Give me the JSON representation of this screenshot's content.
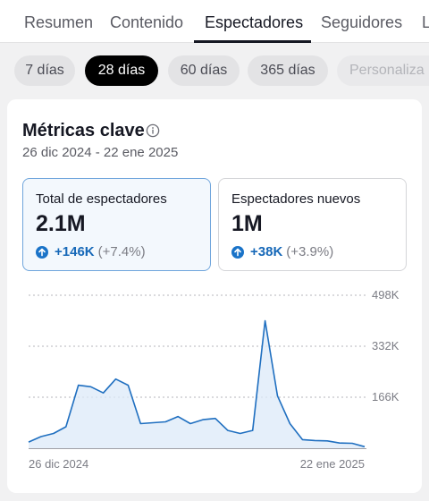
{
  "tabs": [
    {
      "label": "Resumen"
    },
    {
      "label": "Contenido"
    },
    {
      "label": "Espectadores"
    },
    {
      "label": "Seguidores"
    },
    {
      "label": "L"
    }
  ],
  "active_tab": "Espectadores",
  "ranges": [
    {
      "label": "7 días"
    },
    {
      "label": "28 días"
    },
    {
      "label": "60 días"
    },
    {
      "label": "365 días"
    },
    {
      "label": "Personaliza"
    }
  ],
  "active_range": "28 días",
  "card": {
    "title": "Métricas clave",
    "date_range": "26 dic 2024 - 22 ene 2025"
  },
  "metrics": [
    {
      "label": "Total de espectadores",
      "value": "2.1M",
      "delta": "+146K",
      "pct": "(+7.4%)",
      "selected": true
    },
    {
      "label": "Espectadores nuevos",
      "value": "1M",
      "delta": "+38K",
      "pct": "(+3.9%)",
      "selected": false
    }
  ],
  "colors": {
    "accent": "#1a73c8",
    "line": "#1f6fc0",
    "area": "#dceaf8"
  },
  "chart_data": {
    "type": "area",
    "x_start_label": "26 dic 2024",
    "x_end_label": "22 ene 2025",
    "y_ticks": [
      {
        "value": 166000,
        "label": "166K"
      },
      {
        "value": 332000,
        "label": "332K"
      },
      {
        "value": 498000,
        "label": "498K"
      }
    ],
    "ylim": [
      0,
      498000
    ],
    "values": [
      20000,
      38000,
      48000,
      70000,
      205000,
      200000,
      180000,
      225000,
      205000,
      80000,
      83000,
      86000,
      103000,
      80000,
      93000,
      97000,
      58000,
      48000,
      58000,
      415000,
      170000,
      80000,
      28000,
      25000,
      24000,
      17000,
      16000,
      5000
    ],
    "grid": true
  }
}
